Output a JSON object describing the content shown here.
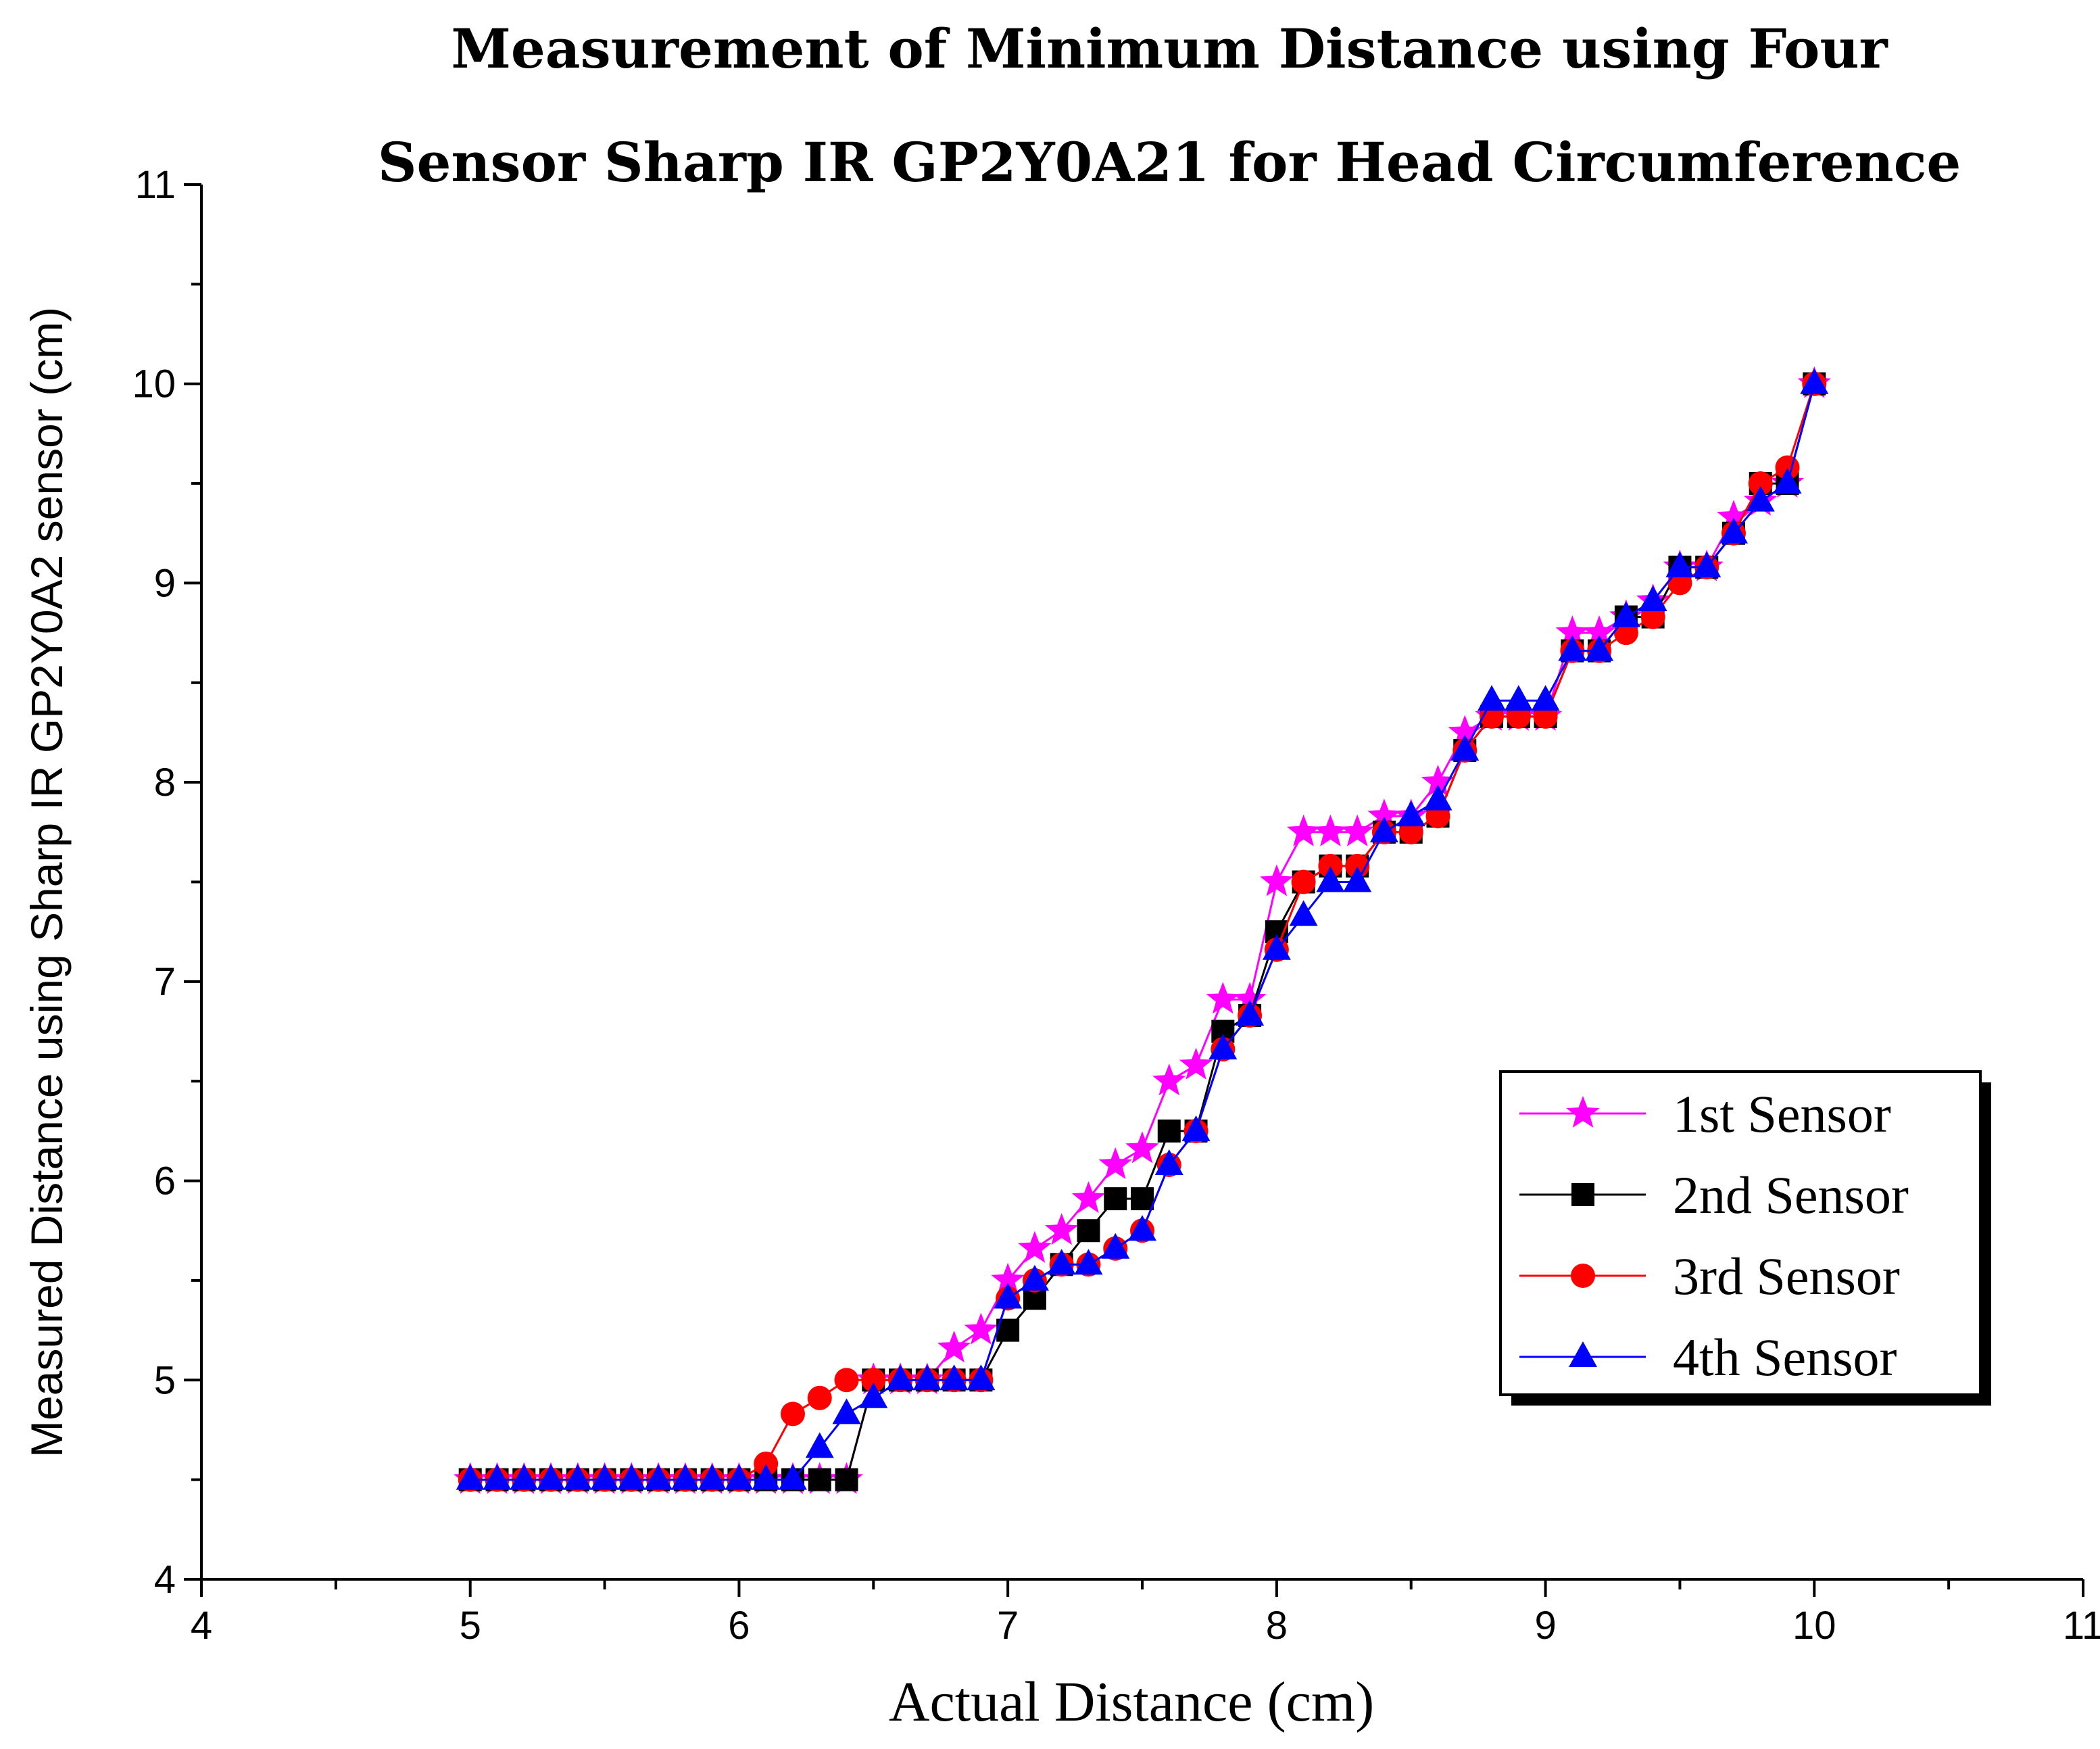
{
  "chart_data": {
    "type": "line",
    "title_lines": [
      "Measurement of Minimum Distance using Four",
      "Sensor Sharp IR GP2Y0A21 for Head Circumference"
    ],
    "xlabel": "Actual Distance (cm)",
    "ylabel": "Measured Distance using Sharp IR GP2Y0A2 sensor (cm)",
    "xlim": [
      4,
      11
    ],
    "ylim": [
      4,
      11
    ],
    "xticks": [
      "4",
      "5",
      "6",
      "7",
      "8",
      "9",
      "10",
      "11"
    ],
    "yticks": [
      "4",
      "5",
      "6",
      "7",
      "8",
      "9",
      "10",
      "11"
    ],
    "grid": false,
    "legend_position": "bottom-right",
    "x": [
      5.0,
      5.1,
      5.2,
      5.3,
      5.4,
      5.5,
      5.6,
      5.7,
      5.8,
      5.9,
      6.0,
      6.1,
      6.2,
      6.3,
      6.4,
      6.5,
      6.6,
      6.7,
      6.8,
      6.9,
      7.0,
      7.1,
      7.2,
      7.3,
      7.4,
      7.5,
      7.6,
      7.7,
      7.8,
      7.9,
      8.0,
      8.1,
      8.2,
      8.3,
      8.4,
      8.5,
      8.6,
      8.7,
      8.8,
      8.9,
      9.0,
      9.1,
      9.2,
      9.3,
      9.4,
      9.5,
      9.6,
      9.7,
      9.8,
      9.9,
      10.0
    ],
    "series": [
      {
        "name": "1st Sensor",
        "color": "#ff00ff",
        "marker": "star",
        "values": [
          4.5,
          4.5,
          4.5,
          4.5,
          4.5,
          4.5,
          4.5,
          4.5,
          4.5,
          4.5,
          4.5,
          4.5,
          4.5,
          4.5,
          4.5,
          5.0,
          5.0,
          5.0,
          5.16,
          5.25,
          5.5,
          5.66,
          5.75,
          5.91,
          6.08,
          6.16,
          6.5,
          6.58,
          6.91,
          6.91,
          7.5,
          7.75,
          7.75,
          7.75,
          7.83,
          7.83,
          8.0,
          8.25,
          8.33,
          8.33,
          8.33,
          8.75,
          8.75,
          8.83,
          8.91,
          9.08,
          9.08,
          9.33,
          9.41,
          9.5,
          10.0
        ]
      },
      {
        "name": "2nd Sensor",
        "color": "#000000",
        "marker": "square",
        "values": [
          4.5,
          4.5,
          4.5,
          4.5,
          4.5,
          4.5,
          4.5,
          4.5,
          4.5,
          4.5,
          4.5,
          4.5,
          4.5,
          4.5,
          4.5,
          5.0,
          5.0,
          5.0,
          5.0,
          5.0,
          5.25,
          5.41,
          5.58,
          5.75,
          5.91,
          5.91,
          6.25,
          6.25,
          6.75,
          6.83,
          7.25,
          7.5,
          7.58,
          7.58,
          7.75,
          7.75,
          7.83,
          8.16,
          8.33,
          8.33,
          8.33,
          8.66,
          8.66,
          8.83,
          8.83,
          9.08,
          9.08,
          9.25,
          9.5,
          9.5,
          10.0
        ]
      },
      {
        "name": "3rd Sensor",
        "color": "#ff0000",
        "marker": "circle",
        "values": [
          4.5,
          4.5,
          4.5,
          4.5,
          4.5,
          4.5,
          4.5,
          4.5,
          4.5,
          4.5,
          4.5,
          4.58,
          4.83,
          4.91,
          5.0,
          5.0,
          5.0,
          5.0,
          5.0,
          5.0,
          5.41,
          5.5,
          5.58,
          5.58,
          5.66,
          5.75,
          6.08,
          6.25,
          6.66,
          6.83,
          7.16,
          7.5,
          7.58,
          7.58,
          7.75,
          7.75,
          7.83,
          8.16,
          8.33,
          8.33,
          8.33,
          8.66,
          8.66,
          8.75,
          8.83,
          9.0,
          9.08,
          9.25,
          9.5,
          9.58,
          10.0
        ]
      },
      {
        "name": "4th Sensor",
        "color": "#0000ff",
        "marker": "triangle",
        "values": [
          4.5,
          4.5,
          4.5,
          4.5,
          4.5,
          4.5,
          4.5,
          4.5,
          4.5,
          4.5,
          4.5,
          4.5,
          4.5,
          4.66,
          4.83,
          4.91,
          5.0,
          5.0,
          5.0,
          5.0,
          5.41,
          5.5,
          5.58,
          5.58,
          5.66,
          5.75,
          6.08,
          6.25,
          6.66,
          6.83,
          7.16,
          7.33,
          7.5,
          7.5,
          7.75,
          7.83,
          7.91,
          8.16,
          8.41,
          8.41,
          8.41,
          8.66,
          8.66,
          8.83,
          8.91,
          9.08,
          9.08,
          9.25,
          9.41,
          9.5,
          10.0
        ]
      }
    ]
  }
}
